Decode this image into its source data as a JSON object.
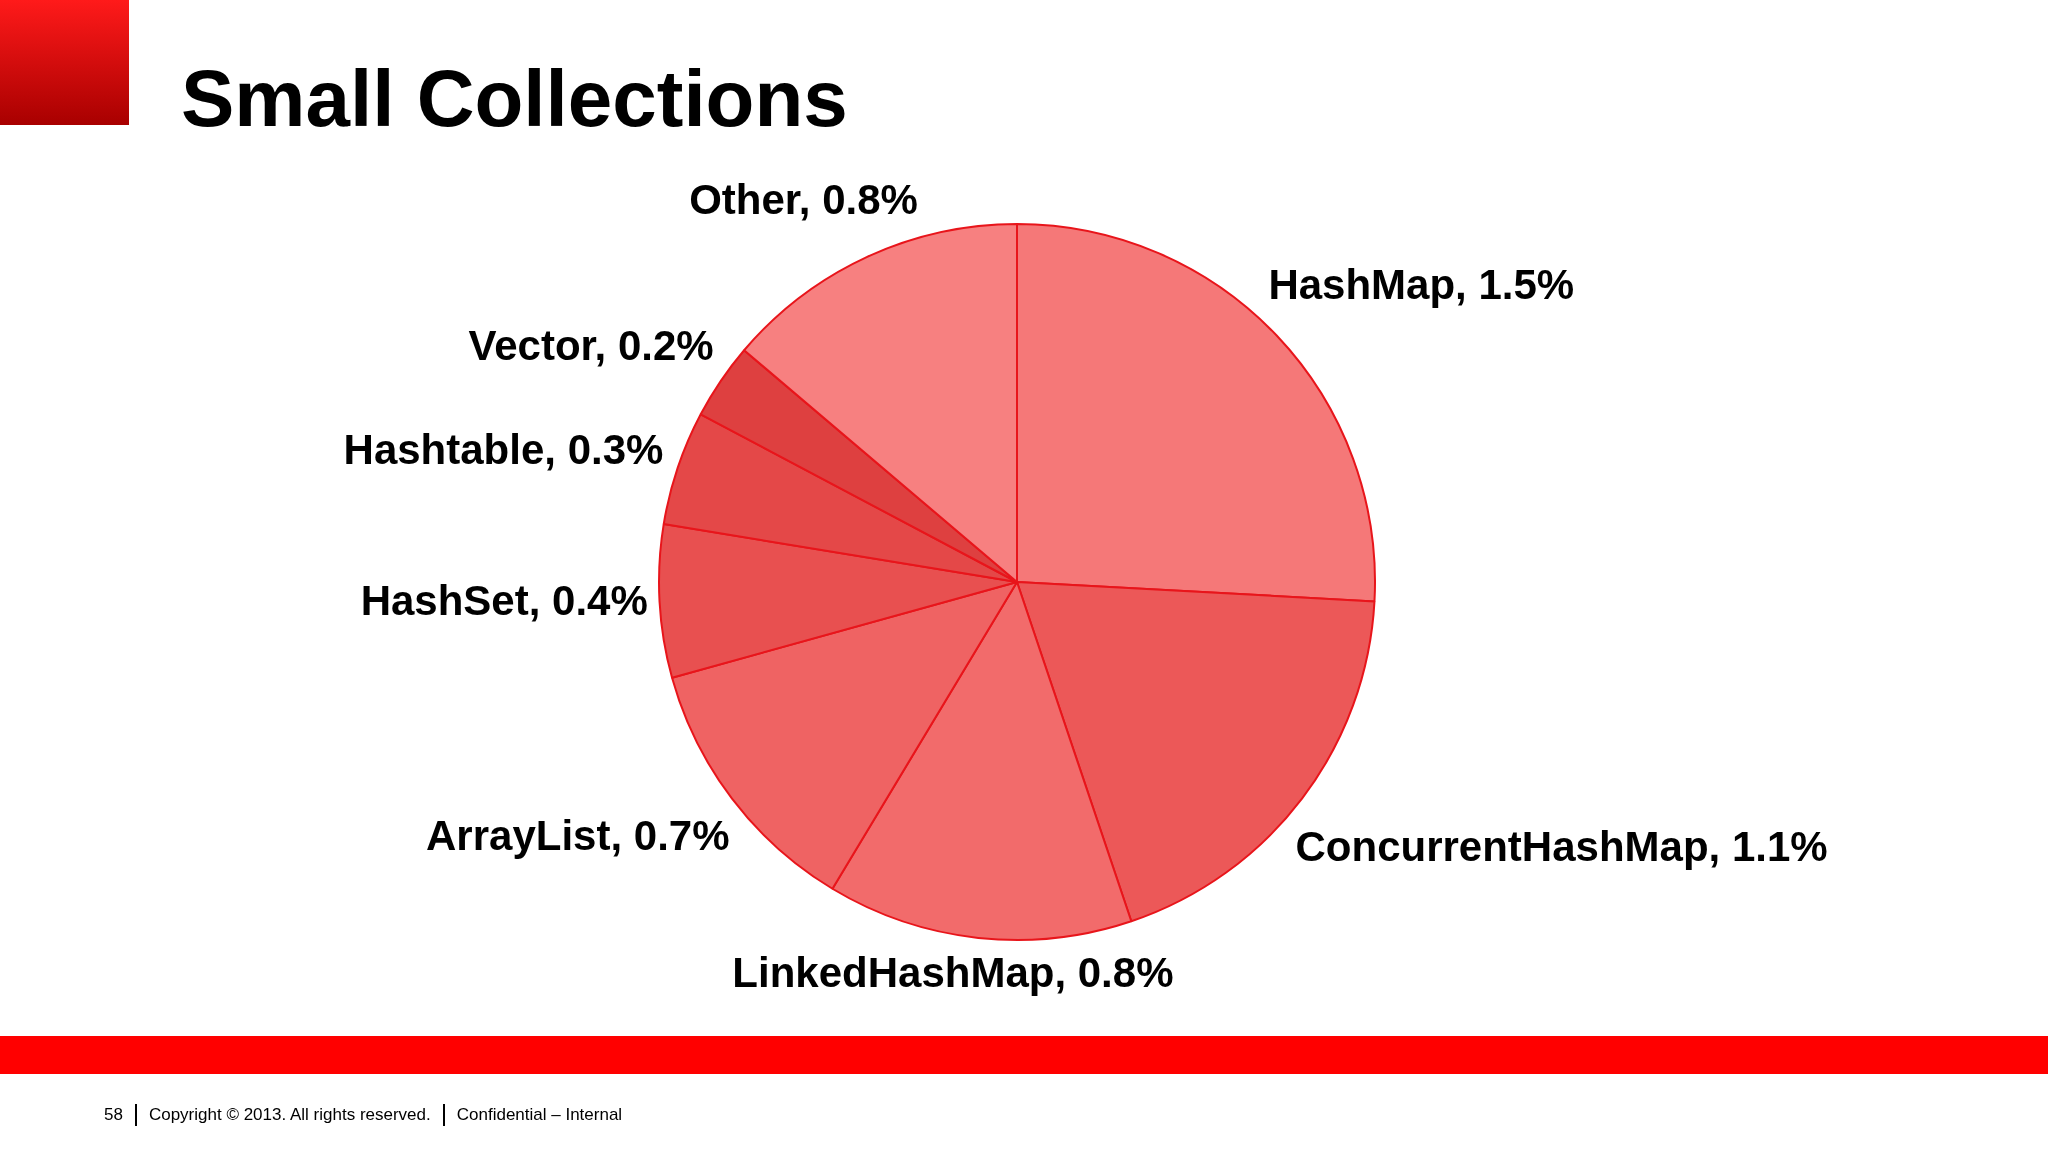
{
  "chart_data": {
    "type": "pie",
    "title": "Small Collections",
    "categories": [
      "HashMap",
      "ConcurrentHashMap",
      "LinkedHashMap",
      "ArrayList",
      "HashSet",
      "Hashtable",
      "Vector",
      "Other"
    ],
    "values": [
      1.5,
      1.1,
      0.8,
      0.7,
      0.4,
      0.3,
      0.2,
      0.8
    ],
    "value_labels": [
      "1.5%",
      "1.1%",
      "0.8%",
      "0.7%",
      "0.4%",
      "0.3%",
      "0.2%",
      "0.8%"
    ],
    "colors": [
      "#f57878",
      "#ec5858",
      "#f26b6b",
      "#ef6363",
      "#e85050",
      "#e44848",
      "#de4040",
      "#f78080"
    ],
    "annotations": [
      "58",
      "Copyright © 2013. All rights reserved.",
      "Confidential – Internal"
    ]
  }
}
